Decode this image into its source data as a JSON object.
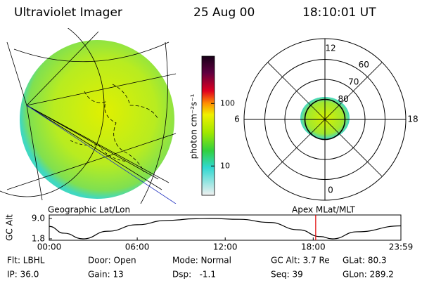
{
  "header": {
    "title": "Ultraviolet Imager",
    "date": "25 Aug 00",
    "time": "18:10:01 UT"
  },
  "colorbar": {
    "label": "photon cm⁻²s⁻¹",
    "scale": "log",
    "lim": [
      3.4,
      570
    ],
    "ticks": [
      100,
      10
    ]
  },
  "left_map": {
    "label": "Geographic Lat/Lon"
  },
  "polar_plot": {
    "label": "Apex MLat/MLT",
    "mlt_ticks": [
      12,
      18,
      6,
      0
    ],
    "lat_rings": [
      60,
      70,
      80
    ]
  },
  "altitude_plot": {
    "ylabel": "GC Alt",
    "ylim": [
      1.8,
      9.0
    ],
    "yticks": [
      {
        "value": 9.0,
        "label": "9.0"
      },
      {
        "value": 1.8,
        "label": "1.8"
      }
    ],
    "xlim": [
      0,
      23.98
    ],
    "xticks": [
      {
        "value": 0,
        "label": "00:00"
      },
      {
        "value": 6,
        "label": "06:00"
      },
      {
        "value": 12,
        "label": "12:00"
      },
      {
        "value": 18,
        "label": "18:00"
      },
      {
        "value": 23.98,
        "label": "23:59"
      }
    ],
    "x": [
      0,
      1,
      2.3,
      4,
      6,
      8,
      10,
      11,
      13,
      15,
      17,
      18.5,
      19.3,
      21,
      23.98
    ],
    "values": [
      6.2,
      3.8,
      1.8,
      4.5,
      6.8,
      8.3,
      8.9,
      9.0,
      8.7,
      7.6,
      5.0,
      2.6,
      1.8,
      4.3,
      6.4
    ],
    "current_time": 18.17,
    "current_color": "#e00000"
  },
  "status": [
    [
      "Flt: LBHL",
      "Door: Open",
      "Mode: Normal",
      "GC Alt: 3.7 Re",
      "GLat: 80.3"
    ],
    [
      "IP: 36.0",
      "Gain: 13",
      "Dsp:   -1.1",
      "Seq: 39",
      "GLon: 289.2"
    ]
  ]
}
